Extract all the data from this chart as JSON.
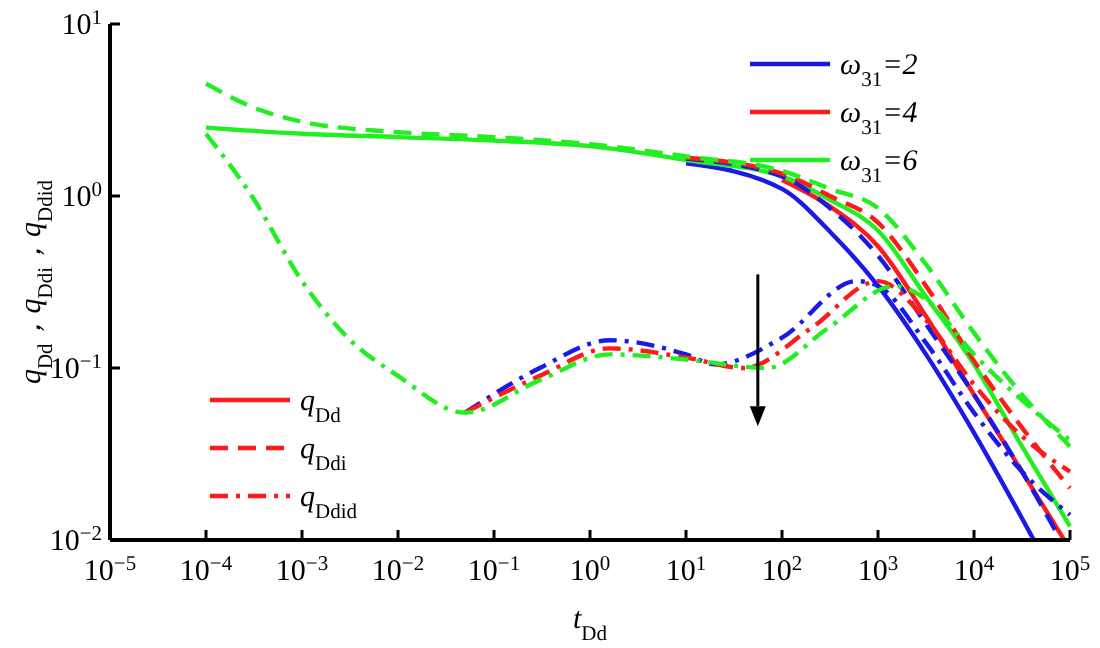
{
  "chart_data": {
    "type": "line",
    "xlabel": "t$_{Dd}$",
    "ylabel": "q$_{Dd}$，q$_{Ddi}$，q$_{Ddid}$",
    "log": "xy",
    "grid": false,
    "legend": "top right",
    "xlim": [
      1e-05,
      100000
    ],
    "ylim": [
      0.01,
      10
    ],
    "xticks": [
      {
        "value": 1e-05,
        "label": "10$^{−5}$"
      },
      {
        "value": 0.0001,
        "label": "10$^{−4}$"
      },
      {
        "value": 0.001,
        "label": "10$^{−3}$"
      },
      {
        "value": 0.01,
        "label": "10$^{−2}$"
      },
      {
        "value": 0.1,
        "label": "10$^{−1}$"
      },
      {
        "value": 1,
        "label": "10$^{0}$"
      },
      {
        "value": 10,
        "label": "10$^{1}$"
      },
      {
        "value": 100,
        "label": "10$^{2}$"
      },
      {
        "value": 1000,
        "label": "10$^{3}$"
      },
      {
        "value": 10000,
        "label": "10$^{4}$"
      },
      {
        "value": 100000,
        "label": "10$^{5}$"
      }
    ],
    "yticks": [
      {
        "value": 0.01,
        "label": "10$^{−2}$"
      },
      {
        "value": 0.1,
        "label": "10$^{−1}$"
      },
      {
        "value": 1,
        "label": "10$^{0}$"
      },
      {
        "value": 10,
        "label": "10$^{1}$"
      }
    ],
    "annotations": [
      "q$_{Dd}$",
      "q$_{Ddi}$",
      "q$_{Ddid}$"
    ],
    "series": [
      {
        "name": "ω$_{31}$=2",
        "color": "#1a1ae6",
        "line_style": "solid",
        "x": [
          10,
          100,
          316,
          1000,
          3162,
          10000,
          42000
        ],
        "values": [
          1.55,
          1.1,
          0.62,
          0.3,
          0.12,
          0.042,
          0.01
        ]
      },
      {
        "name": "ω$_{31}$=4",
        "color": "#ff1a1a",
        "line_style": "solid",
        "x": [
          100,
          316,
          1000,
          3162,
          10000,
          31620,
          87000
        ],
        "values": [
          1.24,
          0.87,
          0.51,
          0.2,
          0.07,
          0.025,
          0.01
        ]
      },
      {
        "name": "ω$_{31}$=6",
        "color": "#22ee22",
        "line_style": "solid",
        "x": [
          0.0001,
          0.001,
          0.01,
          0.1,
          1,
          10,
          100,
          316,
          1000,
          3162,
          10000,
          31620,
          100000
        ],
        "values": [
          2.5,
          2.3,
          2.2,
          2.1,
          1.95,
          1.62,
          1.3,
          0.95,
          0.63,
          0.26,
          0.105,
          0.035,
          0.012
        ]
      },
      {
        "color": "#1a1ae6",
        "line_style": "dashed",
        "x": [
          10,
          100,
          316,
          1000,
          3162,
          10000,
          31620,
          80000
        ],
        "values": [
          1.65,
          1.3,
          0.85,
          0.45,
          0.18,
          0.07,
          0.025,
          0.01
        ]
      },
      {
        "color": "#ff1a1a",
        "line_style": "dashed",
        "x": [
          10,
          100,
          316,
          1000,
          3162,
          10000,
          31620,
          100000
        ],
        "values": [
          1.67,
          1.35,
          1.0,
          0.7,
          0.3,
          0.11,
          0.045,
          0.02
        ]
      },
      {
        "color": "#22ee22",
        "line_style": "dashed",
        "x": [
          0.0001,
          0.0003,
          0.001,
          0.01,
          0.1,
          1,
          10,
          100,
          316,
          1000,
          3162,
          10000,
          31620,
          100000
        ],
        "values": [
          4.5,
          3.3,
          2.7,
          2.35,
          2.2,
          2.0,
          1.7,
          1.4,
          1.1,
          0.85,
          0.4,
          0.16,
          0.07,
          0.035
        ]
      },
      {
        "color": "#1a1ae6",
        "line_style": "dashdot",
        "x": [
          0.05,
          0.3,
          1.6,
          10,
          20,
          100,
          600,
          1000,
          3162,
          10000,
          31620,
          100000
        ],
        "values": [
          0.055,
          0.1,
          0.145,
          0.12,
          0.105,
          0.15,
          0.32,
          0.3,
          0.14,
          0.055,
          0.025,
          0.014
        ]
      },
      {
        "color": "#ff1a1a",
        "line_style": "dashdot",
        "x": [
          0.05,
          0.3,
          1.6,
          10,
          40,
          200,
          1000,
          3162,
          10000,
          31620,
          100000
        ],
        "values": [
          0.055,
          0.09,
          0.13,
          0.115,
          0.1,
          0.17,
          0.32,
          0.19,
          0.08,
          0.04,
          0.025
        ]
      },
      {
        "color": "#22ee22",
        "line_style": "dashdot",
        "x": [
          0.0001,
          0.0003,
          0.001,
          0.003,
          0.01,
          0.05,
          0.3,
          1.6,
          10,
          70,
          300,
          1500,
          3162,
          10000,
          31620,
          100000
        ],
        "values": [
          2.3,
          1.0,
          0.32,
          0.15,
          0.09,
          0.055,
          0.085,
          0.12,
          0.112,
          0.1,
          0.17,
          0.3,
          0.25,
          0.12,
          0.065,
          0.038
        ]
      }
    ]
  }
}
